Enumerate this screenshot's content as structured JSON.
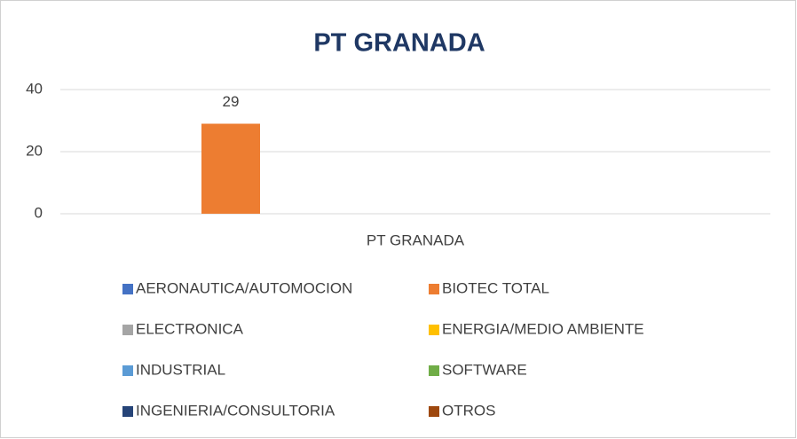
{
  "chart_data": {
    "type": "bar",
    "title": "PT GRANADA",
    "categories": [
      "PT GRANADA"
    ],
    "series": [
      {
        "name": "AERONAUTICA/AUTOMOCION",
        "color": "#4472c4",
        "values": [
          null
        ]
      },
      {
        "name": "BIOTEC TOTAL",
        "color": "#ed7d31",
        "values": [
          29
        ]
      },
      {
        "name": "ELECTRONICA",
        "color": "#a5a5a5",
        "values": [
          null
        ]
      },
      {
        "name": "ENERGIA/MEDIO AMBIENTE",
        "color": "#ffc000",
        "values": [
          null
        ]
      },
      {
        "name": "INDUSTRIAL",
        "color": "#5b9bd5",
        "values": [
          null
        ]
      },
      {
        "name": "SOFTWARE",
        "color": "#70ad47",
        "values": [
          null
        ]
      },
      {
        "name": "INGENIERIA/CONSULTORIA",
        "color": "#264478",
        "values": [
          null
        ]
      },
      {
        "name": "OTROS",
        "color": "#9e480e",
        "values": [
          null
        ]
      }
    ],
    "ylim": [
      0,
      40
    ],
    "yticks": [
      0,
      20,
      40
    ],
    "grid": true,
    "legend": "bottom"
  }
}
